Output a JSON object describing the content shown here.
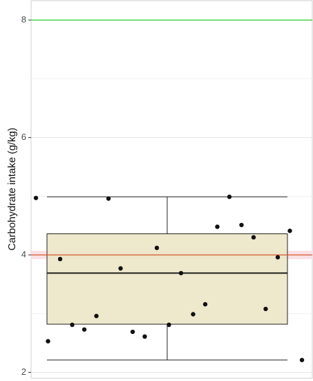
{
  "chart_data": {
    "type": "box",
    "y_label": "Carbohydrate intake (g/kg)",
    "box": {
      "whisker_low": 2.21,
      "q1": 2.82,
      "median": 3.69,
      "q3": 4.36,
      "whisker_high": 4.99,
      "fill": "#ece6c8",
      "stroke": "#222222"
    },
    "points": {
      "values": [
        4.97,
        2.53,
        3.93,
        2.81,
        2.73,
        2.96,
        4.96,
        3.77,
        2.69,
        2.61,
        4.12,
        2.81,
        3.69,
        2.99,
        3.16,
        4.48,
        4.99,
        4.51,
        4.3,
        3.08,
        3.96,
        4.41,
        2.21
      ],
      "color": "#111111"
    },
    "reference_lines": [
      {
        "value": 8,
        "color": "#22cc22"
      },
      {
        "value": 4,
        "color": "#d2592a",
        "band": [
          3.93,
          4.07
        ],
        "band_color": "#fbe0e6"
      }
    ],
    "ylim": [
      1.9,
      8.33
    ],
    "yticks": [
      2,
      4,
      6,
      8
    ],
    "grid": true
  }
}
